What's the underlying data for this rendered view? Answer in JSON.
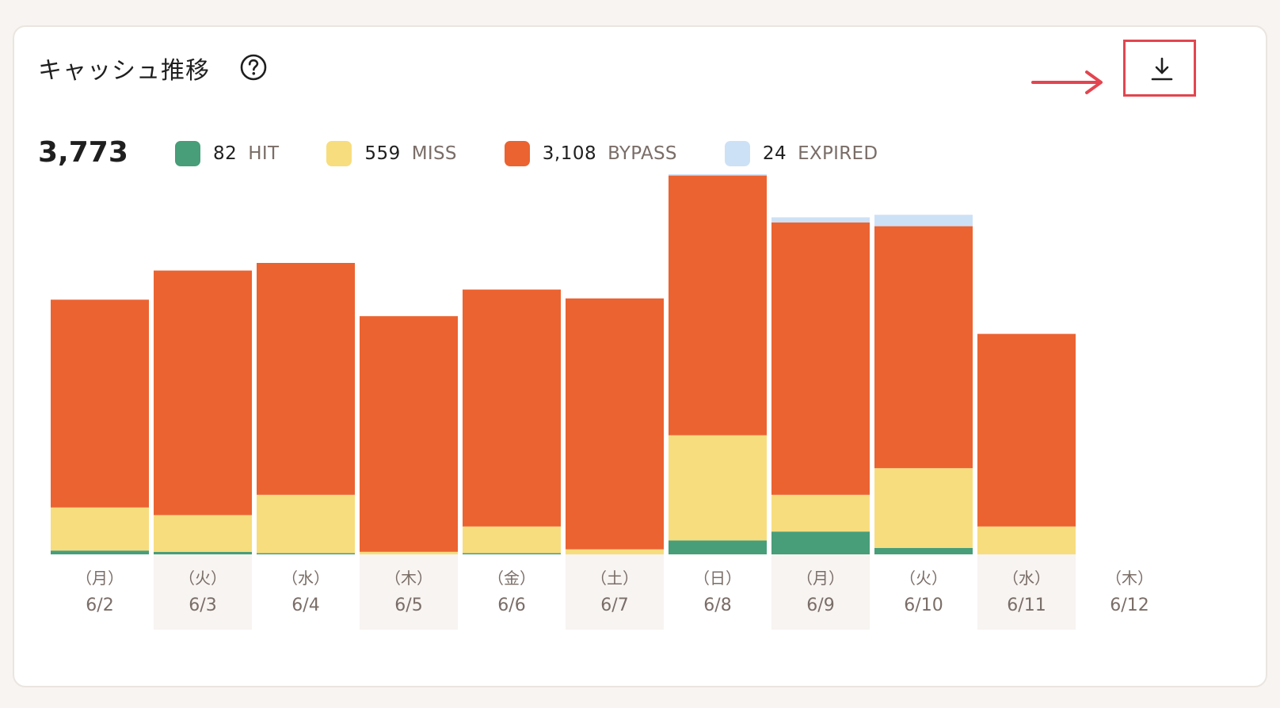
{
  "header": {
    "title": "キャッシュ推移",
    "help_icon": "question-circle-icon",
    "download_icon": "download-icon"
  },
  "summary": {
    "total": "3,773",
    "legend": [
      {
        "count": "82",
        "label": "HIT",
        "color": "#479e79"
      },
      {
        "count": "559",
        "label": "MISS",
        "color": "#f7dd7e"
      },
      {
        "count": "3,108",
        "label": "BYPASS",
        "color": "#eb6331"
      },
      {
        "count": "24",
        "label": "EXPIRED",
        "color": "#cde1f6"
      }
    ]
  },
  "chart_data": {
    "type": "bar",
    "stacked": true,
    "categories": [
      "6/2",
      "6/3",
      "6/4",
      "6/5",
      "6/6",
      "6/7",
      "6/8",
      "6/9",
      "6/10",
      "6/11",
      "6/12"
    ],
    "weekdays": [
      "（月）",
      "（火）",
      "（水）",
      "（木）",
      "（金）",
      "（土）",
      "（日）",
      "（月）",
      "（火）",
      "（水）",
      "（木）"
    ],
    "series": [
      {
        "name": "HIT",
        "color": "#479e79",
        "values": [
          3,
          2,
          1,
          0,
          1,
          0,
          11,
          18,
          5,
          0,
          0
        ]
      },
      {
        "name": "MISS",
        "color": "#f7dd7e",
        "values": [
          34,
          29,
          46,
          2,
          21,
          4,
          83,
          29,
          63,
          22,
          0
        ]
      },
      {
        "name": "BYPASS",
        "color": "#eb6331",
        "values": [
          164,
          193,
          183,
          186,
          187,
          198,
          205,
          215,
          191,
          152,
          0
        ]
      },
      {
        "name": "EXPIRED",
        "color": "#cde1f6",
        "values": [
          0,
          0,
          0,
          0,
          0,
          0,
          1,
          4,
          9,
          0,
          0
        ]
      }
    ]
  },
  "colors": {
    "accent_red": "#e3454f",
    "weekday_text": "#7a6d67",
    "alt_column_bg": "#f7f4f1"
  }
}
